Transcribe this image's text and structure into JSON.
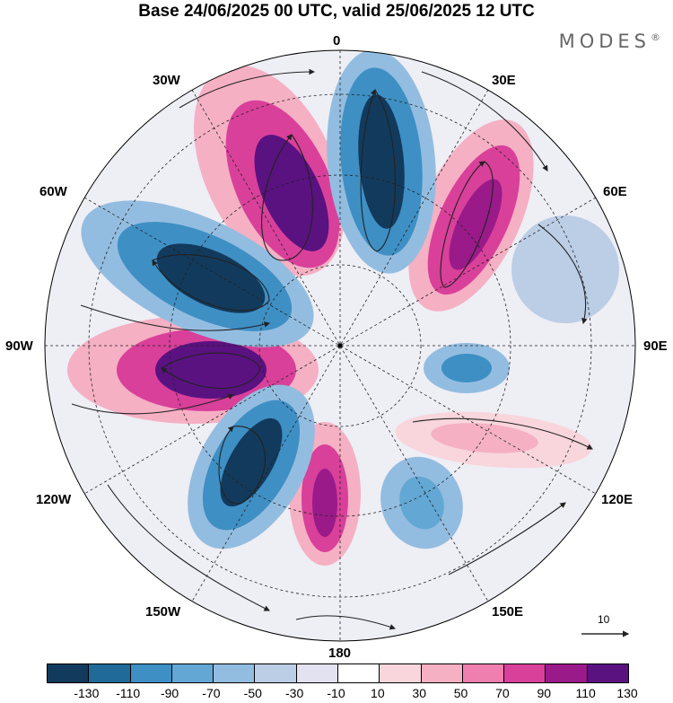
{
  "title": "Base 24/06/2025 00 UTC, valid 25/06/2025 12 UTC",
  "brand": "MODES",
  "brand_mark": "®",
  "longitude_labels": {
    "lon_0": "0",
    "lon_30e": "30E",
    "lon_60e": "60E",
    "lon_90e": "90E",
    "lon_120e": "120E",
    "lon_150e": "150E",
    "lon_180": "180",
    "lon_150w": "150W",
    "lon_120w": "120W",
    "lon_90w": "90W",
    "lon_60w": "60W",
    "lon_30w": "30W"
  },
  "reference_vector": {
    "value": "10"
  },
  "colorbar": {
    "colors": [
      "#123a5c",
      "#1f6a99",
      "#3e8fc4",
      "#63a7d4",
      "#93bde0",
      "#bccde6",
      "#e2e2f0",
      "#ffffff",
      "#f8d6dc",
      "#f5b0c4",
      "#ee7fae",
      "#d9409a",
      "#9a1a8a",
      "#5a1280"
    ],
    "tick_labels": [
      "-130",
      "-110",
      "-90",
      "-70",
      "-50",
      "-30",
      "-10",
      "10",
      "30",
      "50",
      "70",
      "90",
      "110",
      "130"
    ]
  }
}
